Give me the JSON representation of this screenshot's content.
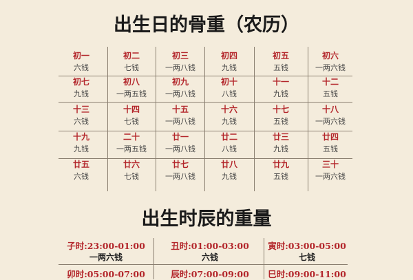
{
  "title1": "出生日的骨重（农历）",
  "days": [
    {
      "d": "初一",
      "w": "六钱"
    },
    {
      "d": "初二",
      "w": "七钱"
    },
    {
      "d": "初三",
      "w": "一两八钱"
    },
    {
      "d": "初四",
      "w": "九钱"
    },
    {
      "d": "初五",
      "w": "五钱"
    },
    {
      "d": "初六",
      "w": "一两六钱"
    },
    {
      "d": "初七",
      "w": "九钱"
    },
    {
      "d": "初八",
      "w": "一两五钱"
    },
    {
      "d": "初九",
      "w": "一两八钱"
    },
    {
      "d": "初十",
      "w": "八钱"
    },
    {
      "d": "十一",
      "w": "九钱"
    },
    {
      "d": "十二",
      "w": "五钱"
    },
    {
      "d": "十三",
      "w": "六钱"
    },
    {
      "d": "十四",
      "w": "七钱"
    },
    {
      "d": "十五",
      "w": "一两八钱"
    },
    {
      "d": "十六",
      "w": "九钱"
    },
    {
      "d": "十七",
      "w": "五钱"
    },
    {
      "d": "十八",
      "w": "一两六钱"
    },
    {
      "d": "十九",
      "w": "九钱"
    },
    {
      "d": "二十",
      "w": "一两五钱"
    },
    {
      "d": "廿一",
      "w": "一两八钱"
    },
    {
      "d": "廿二",
      "w": "八钱"
    },
    {
      "d": "廿三",
      "w": "九钱"
    },
    {
      "d": "廿四",
      "w": "五钱"
    },
    {
      "d": "廿五",
      "w": "六钱"
    },
    {
      "d": "廿六",
      "w": "七钱"
    },
    {
      "d": "廿七",
      "w": "一两八钱"
    },
    {
      "d": "廿八",
      "w": "九钱"
    },
    {
      "d": "廿九",
      "w": "五钱"
    },
    {
      "d": "三十",
      "w": "一两六钱"
    }
  ],
  "title2": "出生时辰的重量",
  "hours": [
    {
      "h": "子时:23:00-01:00",
      "w": "一两六钱"
    },
    {
      "h": "丑时:01:00-03:00",
      "w": "六钱"
    },
    {
      "h": "寅时:03:00-05:00",
      "w": "七钱"
    },
    {
      "h": "卯时:05:00-07:00",
      "w": ""
    },
    {
      "h": "辰时:07:00-09:00",
      "w": ""
    },
    {
      "h": "巳时:09:00-11:00",
      "w": ""
    }
  ]
}
